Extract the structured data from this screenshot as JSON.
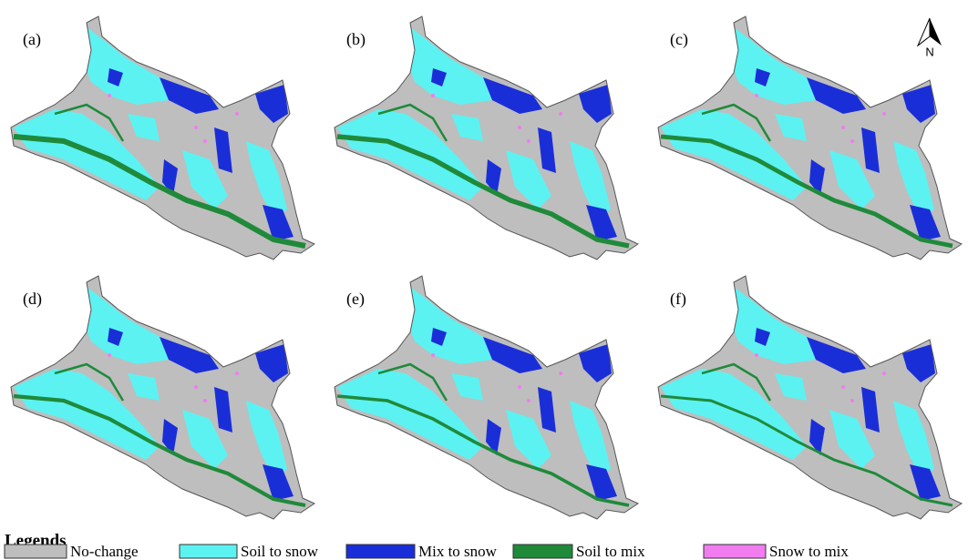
{
  "panels": [
    {
      "label": "(a)"
    },
    {
      "label": "(b)"
    },
    {
      "label": "(c)"
    },
    {
      "label": "(d)"
    },
    {
      "label": "(e)"
    },
    {
      "label": "(f)"
    }
  ],
  "north": "N",
  "legend": {
    "title": "Legends",
    "items": [
      {
        "name": "No-change",
        "color": "#bebebe"
      },
      {
        "name": "Soil to snow",
        "color": "#5cf2f2"
      },
      {
        "name": "Mix to snow",
        "color": "#1a2ed8"
      },
      {
        "name": "Soil to mix",
        "color": "#1f8a3a"
      },
      {
        "name": "Snow to mix",
        "color": "#f07cf0"
      }
    ]
  }
}
